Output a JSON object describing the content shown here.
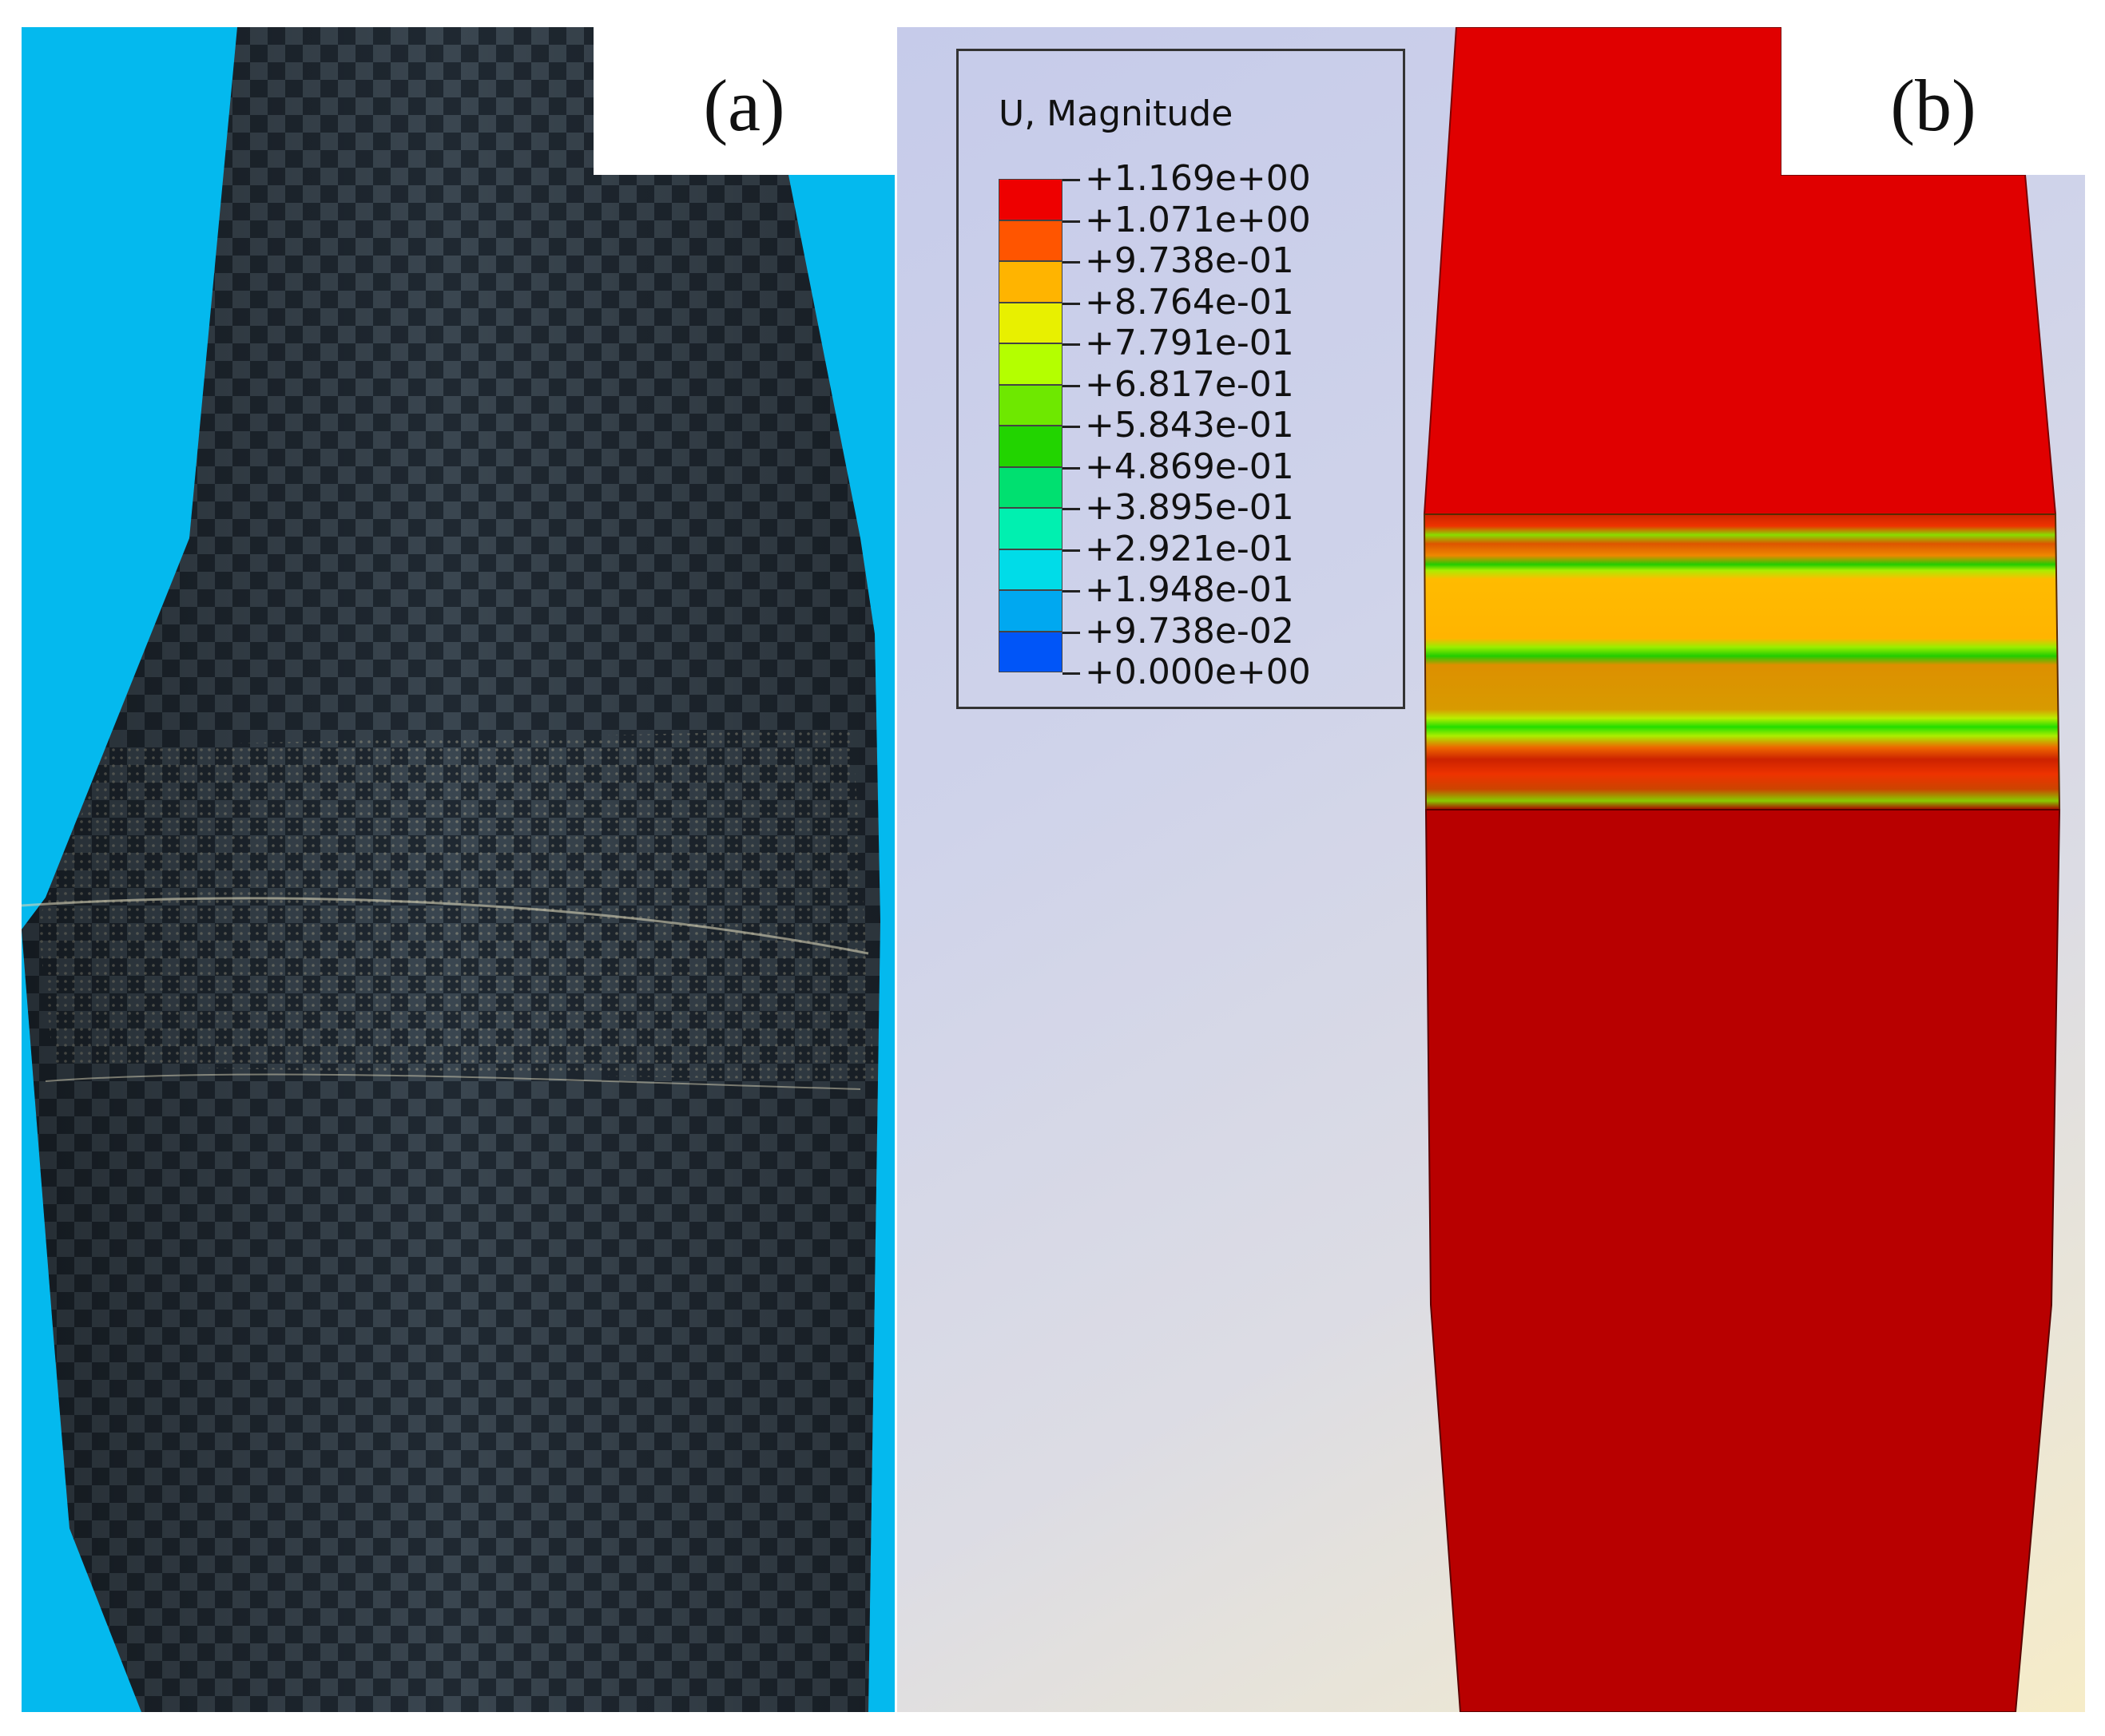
{
  "figure": {
    "panel_a": {
      "label": "(a)",
      "colors": {
        "background": "#04b9ee",
        "fabric": "#2d3742"
      }
    },
    "panel_b": {
      "label": "(b)",
      "legend": {
        "title": "U, Magnitude",
        "values": [
          "+1.169e+00",
          "+1.071e+00",
          "+9.738e-01",
          "+8.764e-01",
          "+7.791e-01",
          "+6.817e-01",
          "+5.843e-01",
          "+4.869e-01",
          "+3.895e-01",
          "+2.921e-01",
          "+1.948e-01",
          "+9.738e-02",
          "+0.000e+00"
        ],
        "colors": [
          "#ee0000",
          "#ff5500",
          "#ffb400",
          "#e8f000",
          "#b4ff00",
          "#6ee800",
          "#22d400",
          "#00e070",
          "#00f0b0",
          "#00dce8",
          "#00a8f0",
          "#0055f8",
          "#0000e8"
        ]
      }
    }
  }
}
